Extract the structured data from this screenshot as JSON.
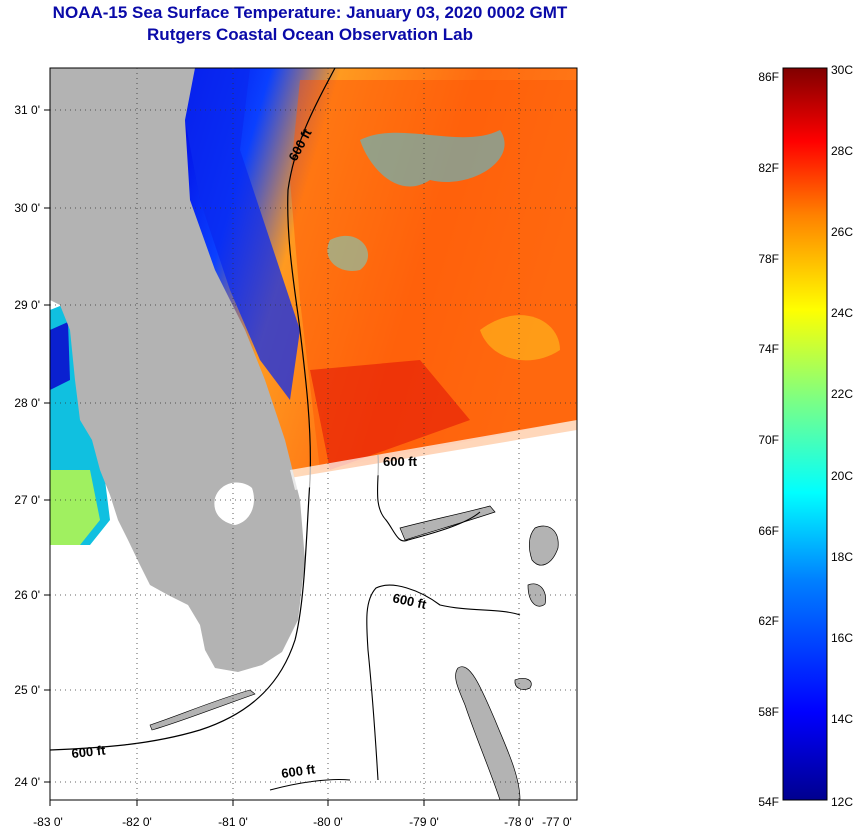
{
  "title": {
    "line1": "NOAA-15 Sea Surface Temperature:  January 03, 2020 0002 GMT",
    "line2": "Rutgers Coastal Ocean Observation Lab"
  },
  "map": {
    "x_axis_ticks": [
      "-83 0'",
      "-82 0'",
      "-81 0'",
      "-80 0'",
      "-79 0'",
      "-78 0'",
      "-77 0'"
    ],
    "y_axis_ticks": [
      "31 0'",
      "30 0'",
      "29 0'",
      "28 0'",
      "27 0'",
      "26 0'",
      "25 0'",
      "24 0'"
    ],
    "contour_labels": [
      "600 ft",
      "600 ft",
      "600 ft",
      "600 ft",
      "600 ft"
    ],
    "colors": {
      "land": "#b3b3b3",
      "no_data": "#ffffff",
      "title": "#0a0aa8"
    }
  },
  "colorbar": {
    "fahrenheit_labels": [
      "86F",
      "82F",
      "78F",
      "74F",
      "70F",
      "66F",
      "62F",
      "58F",
      "54F"
    ],
    "celsius_labels": [
      "30C",
      "28C",
      "26C",
      "24C",
      "22C",
      "20C",
      "18C",
      "16C",
      "14C",
      "12C"
    ]
  }
}
